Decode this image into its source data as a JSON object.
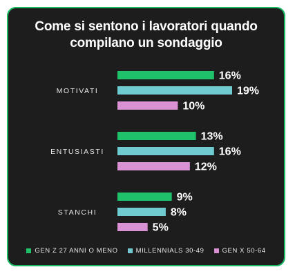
{
  "chart_data": {
    "type": "bar",
    "orientation": "horizontal",
    "title_lines": [
      "Come si sentono i lavoratori quando",
      "compilano un sondaggio"
    ],
    "categories": [
      "MOTIVATI",
      "ENTUSIASTI",
      "STANCHI"
    ],
    "series": [
      {
        "name": "GEN Z 27 ANNI O MENO",
        "color": "#1fc26a",
        "values": [
          16,
          13,
          9
        ]
      },
      {
        "name": "MILLENNIALS 30-49",
        "color": "#6fcbd0",
        "values": [
          19,
          16,
          8
        ]
      },
      {
        "name": "GEN X 50-64",
        "color": "#d891d3",
        "values": [
          10,
          12,
          5
        ]
      }
    ],
    "value_suffix": "%",
    "xlim": [
      0,
      19
    ],
    "grid": false,
    "axes_visible": false,
    "legend_position": "bottom"
  },
  "colors": {
    "background": "#1d1d1d",
    "border": "#19b863",
    "text": "#ffffff"
  }
}
